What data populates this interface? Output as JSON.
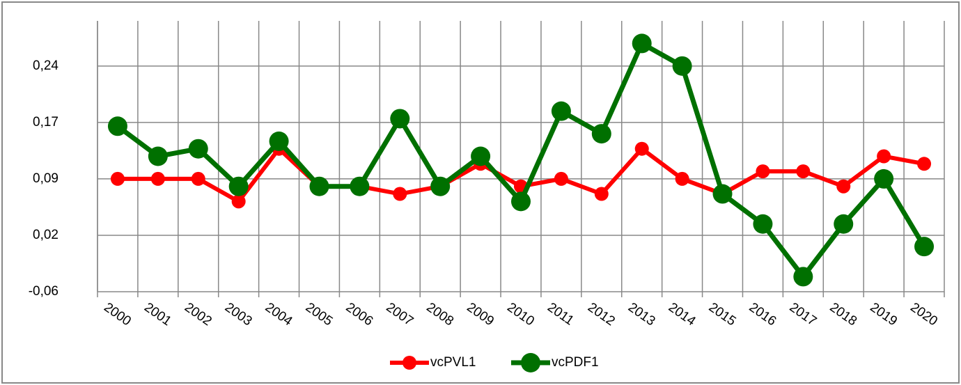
{
  "chart_data": {
    "type": "line",
    "categories": [
      "2000",
      "2001",
      "2002",
      "2003",
      "2004",
      "2005",
      "2006",
      "2007",
      "2008",
      "2009",
      "2010",
      "2011",
      "2012",
      "2013",
      "2014",
      "2015",
      "2016",
      "2017",
      "2018",
      "2019",
      "2020"
    ],
    "series": [
      {
        "name": "vcPVL1",
        "color": "#ff0000",
        "values": [
          0.09,
          0.09,
          0.09,
          0.06,
          0.13,
          0.08,
          0.08,
          0.07,
          0.08,
          0.11,
          0.08,
          0.09,
          0.07,
          0.13,
          0.09,
          0.07,
          0.1,
          0.1,
          0.08,
          0.12,
          0.11
        ]
      },
      {
        "name": "vcPDF1",
        "color": "#007000",
        "values": [
          0.16,
          0.12,
          0.13,
          0.08,
          0.14,
          0.08,
          0.08,
          0.17,
          0.08,
          0.12,
          0.06,
          0.18,
          0.15,
          0.27,
          0.24,
          0.07,
          0.03,
          -0.04,
          0.03,
          0.09,
          0.0
        ]
      }
    ],
    "ylim": [
      -0.06,
      0.3
    ],
    "yticks": [
      {
        "value": -0.06,
        "label": "-0,06"
      },
      {
        "value": 0.015,
        "label": "0,02"
      },
      {
        "value": 0.09,
        "label": "0,09"
      },
      {
        "value": 0.165,
        "label": "0,17"
      },
      {
        "value": 0.24,
        "label": "0,24"
      }
    ],
    "grid": true,
    "legend": "bottom"
  }
}
